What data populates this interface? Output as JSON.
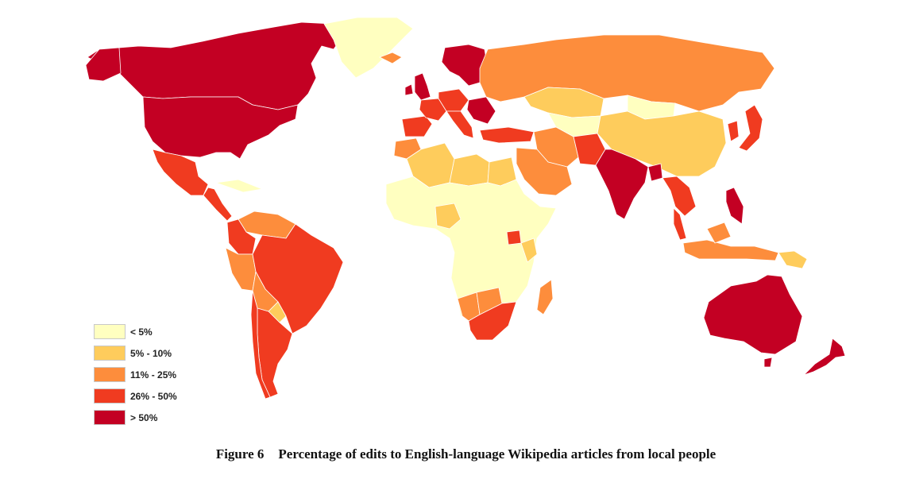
{
  "caption": {
    "figure_label": "Figure 6",
    "text": "Percentage of edits to English-language Wikipedia articles from local people"
  },
  "legend": {
    "items": [
      {
        "label": "< 5%",
        "color": "#ffffc0"
      },
      {
        "label": "5% - 10%",
        "color": "#fecc5c"
      },
      {
        "label": "11% - 25%",
        "color": "#fd8d3c"
      },
      {
        "label": "26% - 50%",
        "color": "#f03b20"
      },
      {
        "label": "> 50%",
        "color": "#c30023"
      }
    ]
  },
  "map_data": {
    "type": "choropleth",
    "regions": [
      {
        "name": "Canada",
        "category": 4
      },
      {
        "name": "United States",
        "category": 4
      },
      {
        "name": "Greenland",
        "category": 0
      },
      {
        "name": "Mexico",
        "category": 3
      },
      {
        "name": "Central America",
        "category": 3
      },
      {
        "name": "Cuba",
        "category": 0
      },
      {
        "name": "Colombia",
        "category": 3
      },
      {
        "name": "Venezuela",
        "category": 2
      },
      {
        "name": "Brazil",
        "category": 3
      },
      {
        "name": "Peru",
        "category": 2
      },
      {
        "name": "Bolivia",
        "category": 2
      },
      {
        "name": "Paraguay",
        "category": 1
      },
      {
        "name": "Argentina",
        "category": 3
      },
      {
        "name": "Chile",
        "category": 3
      },
      {
        "name": "Iceland",
        "category": 2
      },
      {
        "name": "United Kingdom",
        "category": 4
      },
      {
        "name": "Ireland",
        "category": 4
      },
      {
        "name": "Scandinavia",
        "category": 4
      },
      {
        "name": "Spain",
        "category": 3
      },
      {
        "name": "France",
        "category": 3
      },
      {
        "name": "Germany",
        "category": 3
      },
      {
        "name": "Italy",
        "category": 3
      },
      {
        "name": "Romania",
        "category": 4
      },
      {
        "name": "Turkey",
        "category": 3
      },
      {
        "name": "Russia",
        "category": 2
      },
      {
        "name": "Kazakhstan",
        "category": 1
      },
      {
        "name": "Mongolia",
        "category": 0
      },
      {
        "name": "China",
        "category": 1
      },
      {
        "name": "Japan",
        "category": 3
      },
      {
        "name": "Korea",
        "category": 3
      },
      {
        "name": "India",
        "category": 4
      },
      {
        "name": "Pakistan",
        "category": 3
      },
      {
        "name": "Bangladesh",
        "category": 4
      },
      {
        "name": "Iran",
        "category": 2
      },
      {
        "name": "Saudi Arabia",
        "category": 2
      },
      {
        "name": "Egypt",
        "category": 1
      },
      {
        "name": "Libya",
        "category": 1
      },
      {
        "name": "Algeria",
        "category": 1
      },
      {
        "name": "Morocco",
        "category": 2
      },
      {
        "name": "Sub-Saharan Africa",
        "category": 0
      },
      {
        "name": "Nigeria",
        "category": 1
      },
      {
        "name": "Uganda",
        "category": 3
      },
      {
        "name": "Kenya",
        "category": 1
      },
      {
        "name": "Namibia",
        "category": 2
      },
      {
        "name": "Botswana",
        "category": 2
      },
      {
        "name": "South Africa",
        "category": 3
      },
      {
        "name": "Madagascar",
        "category": 2
      },
      {
        "name": "Thailand",
        "category": 3
      },
      {
        "name": "Malaysia",
        "category": 3
      },
      {
        "name": "Philippines",
        "category": 4
      },
      {
        "name": "Indonesia",
        "category": 2
      },
      {
        "name": "Papua New Guinea",
        "category": 1
      },
      {
        "name": "Australia",
        "category": 4
      },
      {
        "name": "New Zealand",
        "category": 4
      }
    ]
  }
}
